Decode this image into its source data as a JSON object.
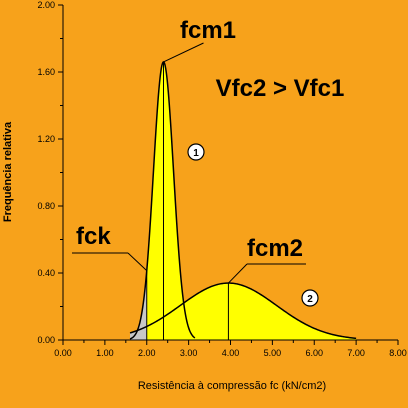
{
  "chart_data": {
    "type": "area",
    "xlabel": "Resistência à compressão fc (kN/cm2)",
    "ylabel": "Frequência relativa",
    "xlim": [
      0,
      8
    ],
    "ylim": [
      0,
      2
    ],
    "xticks": [
      0,
      1,
      2,
      3,
      4,
      5,
      6,
      7,
      8
    ],
    "xtick_labels": [
      "0.00",
      "1.00",
      "2.00",
      "3.00",
      "4.00",
      "5.00",
      "6.00",
      "7.00",
      "8.00"
    ],
    "yticks": [
      0,
      0.4,
      0.8,
      1.2,
      1.6,
      2.0
    ],
    "ytick_labels": [
      "0.00",
      "0.40",
      "0.80",
      "1.20",
      "1.60",
      "2.00"
    ],
    "grid": false,
    "series": [
      {
        "name": "1",
        "mean": 2.4,
        "peak": 1.66,
        "std": 0.24,
        "x_from": 1.6,
        "x_to": 3.15
      },
      {
        "name": "2",
        "mean": 3.95,
        "peak": 0.34,
        "std": 1.15,
        "x_from": 1.6,
        "x_to": 7.0
      }
    ],
    "fck": 2.0,
    "colors": {
      "background": "#f7a21b",
      "fill": "#ffff00",
      "tail_fill": "#c8c8c8",
      "line": "#000000"
    },
    "annotations": {
      "fcm1": "fcm1",
      "fcm2": "fcm2",
      "fck": "fck",
      "relation": "Vfc2 > Vfc1",
      "curve1_marker": "1",
      "curve2_marker": "2"
    }
  }
}
